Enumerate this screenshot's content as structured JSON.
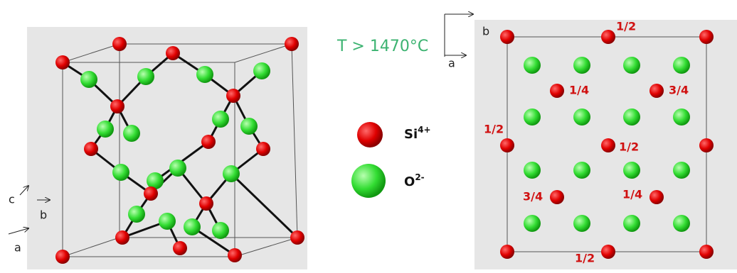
{
  "left_axes": {
    "c": "c",
    "b": "b",
    "a": "a"
  },
  "condition": "T > 1470°C",
  "legend": [
    {
      "label": "Si",
      "charge": "4+"
    },
    {
      "label": "O",
      "charge": "2-"
    }
  ],
  "right_axes": {
    "b": "b",
    "a": "a"
  },
  "projection_labels": [
    "1/2",
    "1/4",
    "3/4",
    "1/2",
    "1/2",
    "3/4",
    "1/4",
    "1/2"
  ]
}
